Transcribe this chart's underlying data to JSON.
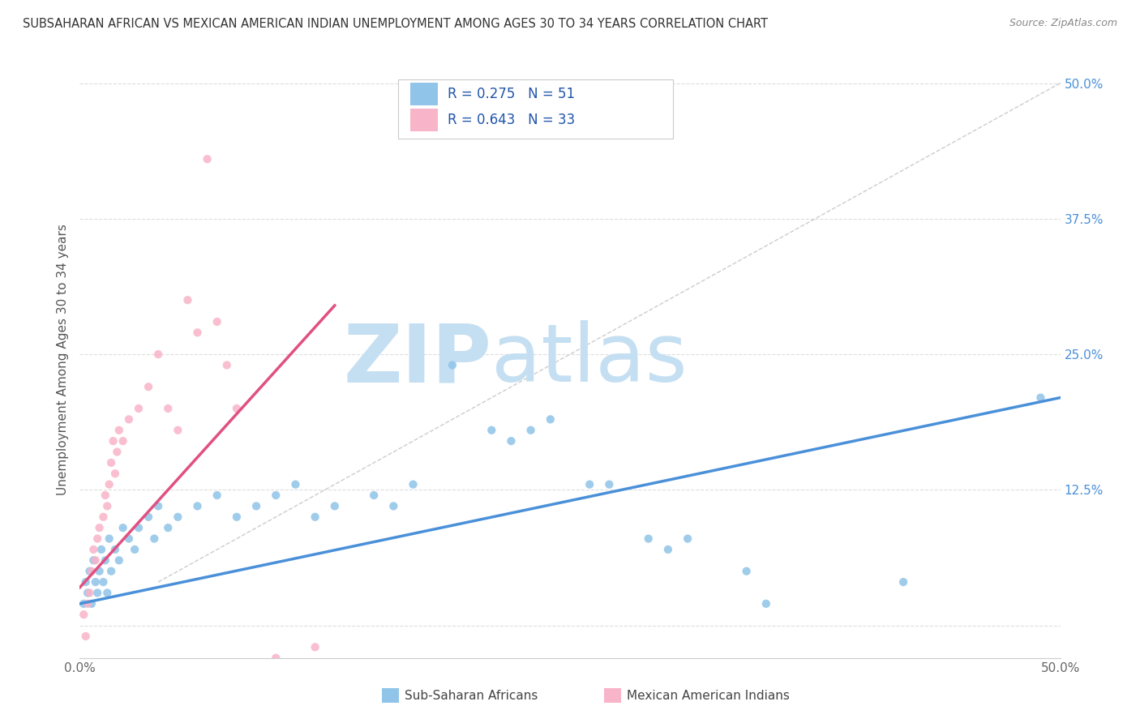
{
  "title": "SUBSAHARAN AFRICAN VS MEXICAN AMERICAN INDIAN UNEMPLOYMENT AMONG AGES 30 TO 34 YEARS CORRELATION CHART",
  "source": "Source: ZipAtlas.com",
  "ylabel": "Unemployment Among Ages 30 to 34 years",
  "xlim": [
    0.0,
    0.5
  ],
  "ylim": [
    -0.03,
    0.52
  ],
  "blue_scatter": [
    [
      0.002,
      0.02
    ],
    [
      0.003,
      0.04
    ],
    [
      0.004,
      0.03
    ],
    [
      0.005,
      0.05
    ],
    [
      0.006,
      0.02
    ],
    [
      0.007,
      0.06
    ],
    [
      0.008,
      0.04
    ],
    [
      0.009,
      0.03
    ],
    [
      0.01,
      0.05
    ],
    [
      0.011,
      0.07
    ],
    [
      0.012,
      0.04
    ],
    [
      0.013,
      0.06
    ],
    [
      0.014,
      0.03
    ],
    [
      0.015,
      0.08
    ],
    [
      0.016,
      0.05
    ],
    [
      0.018,
      0.07
    ],
    [
      0.02,
      0.06
    ],
    [
      0.022,
      0.09
    ],
    [
      0.025,
      0.08
    ],
    [
      0.028,
      0.07
    ],
    [
      0.03,
      0.09
    ],
    [
      0.035,
      0.1
    ],
    [
      0.038,
      0.08
    ],
    [
      0.04,
      0.11
    ],
    [
      0.045,
      0.09
    ],
    [
      0.05,
      0.1
    ],
    [
      0.06,
      0.11
    ],
    [
      0.07,
      0.12
    ],
    [
      0.08,
      0.1
    ],
    [
      0.09,
      0.11
    ],
    [
      0.1,
      0.12
    ],
    [
      0.11,
      0.13
    ],
    [
      0.12,
      0.1
    ],
    [
      0.13,
      0.11
    ],
    [
      0.15,
      0.12
    ],
    [
      0.16,
      0.11
    ],
    [
      0.17,
      0.13
    ],
    [
      0.19,
      0.24
    ],
    [
      0.21,
      0.18
    ],
    [
      0.22,
      0.17
    ],
    [
      0.23,
      0.18
    ],
    [
      0.24,
      0.19
    ],
    [
      0.26,
      0.13
    ],
    [
      0.27,
      0.13
    ],
    [
      0.29,
      0.08
    ],
    [
      0.3,
      0.07
    ],
    [
      0.31,
      0.08
    ],
    [
      0.34,
      0.05
    ],
    [
      0.35,
      0.02
    ],
    [
      0.42,
      0.04
    ],
    [
      0.49,
      0.21
    ]
  ],
  "pink_scatter": [
    [
      0.002,
      0.01
    ],
    [
      0.003,
      -0.01
    ],
    [
      0.004,
      0.02
    ],
    [
      0.005,
      0.03
    ],
    [
      0.006,
      0.05
    ],
    [
      0.007,
      0.07
    ],
    [
      0.008,
      0.06
    ],
    [
      0.009,
      0.08
    ],
    [
      0.01,
      0.09
    ],
    [
      0.012,
      0.1
    ],
    [
      0.013,
      0.12
    ],
    [
      0.014,
      0.11
    ],
    [
      0.015,
      0.13
    ],
    [
      0.016,
      0.15
    ],
    [
      0.017,
      0.17
    ],
    [
      0.018,
      0.14
    ],
    [
      0.019,
      0.16
    ],
    [
      0.02,
      0.18
    ],
    [
      0.022,
      0.17
    ],
    [
      0.025,
      0.19
    ],
    [
      0.03,
      0.2
    ],
    [
      0.035,
      0.22
    ],
    [
      0.04,
      0.25
    ],
    [
      0.045,
      0.2
    ],
    [
      0.05,
      0.18
    ],
    [
      0.055,
      0.3
    ],
    [
      0.06,
      0.27
    ],
    [
      0.065,
      0.43
    ],
    [
      0.07,
      0.28
    ],
    [
      0.075,
      0.24
    ],
    [
      0.08,
      0.2
    ],
    [
      0.1,
      -0.03
    ],
    [
      0.12,
      -0.02
    ]
  ],
  "blue_line_x": [
    0.0,
    0.5
  ],
  "blue_line_y": [
    0.02,
    0.21
  ],
  "pink_line_x": [
    0.0,
    0.13
  ],
  "pink_line_y": [
    0.035,
    0.295
  ],
  "diag_line_x": [
    0.04,
    0.5
  ],
  "diag_line_y": [
    0.04,
    0.5
  ],
  "blue_color": "#90c4e8",
  "pink_color": "#f8b4c8",
  "blue_line_color": "#4a90d9",
  "pink_line_color": "#e05080",
  "diag_color": "#cccccc",
  "watermark_zip": "ZIP",
  "watermark_atlas": "atlas",
  "watermark_color_zip": "#c5dff2",
  "watermark_color_atlas": "#c5dff2",
  "legend_R_blue": "R = 0.275",
  "legend_N_blue": "N = 51",
  "legend_R_pink": "R = 0.643",
  "legend_N_pink": "N = 33",
  "legend_label_blue": "Sub-Saharan Africans",
  "legend_label_pink": "Mexican American Indians",
  "legend_text_color": "#2255aa",
  "legend_box_color": "#cccccc"
}
